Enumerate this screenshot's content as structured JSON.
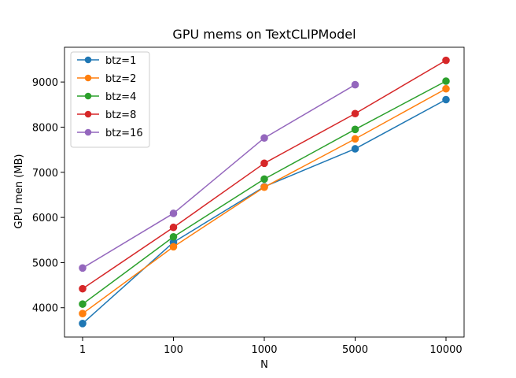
{
  "chart_data": {
    "type": "line",
    "title": "GPU mems on TextCLIPModel",
    "xlabel": "N",
    "ylabel": "GPU men (MB)",
    "categories": [
      "1",
      "100",
      "1000",
      "5000",
      "10000"
    ],
    "ylim": [
      3350,
      9770
    ],
    "yticks": [
      4000,
      5000,
      6000,
      7000,
      8000,
      9000
    ],
    "grid": false,
    "legend_position": "upper-left",
    "marker": "circle",
    "series": [
      {
        "name": "btz=1",
        "color": "#1f77b4",
        "values": [
          3650,
          5450,
          6680,
          7520,
          8610
        ]
      },
      {
        "name": "btz=2",
        "color": "#ff7f0e",
        "values": [
          3870,
          5350,
          6670,
          7740,
          8850
        ]
      },
      {
        "name": "btz=4",
        "color": "#2ca02c",
        "values": [
          4080,
          5570,
          6850,
          7950,
          9020
        ]
      },
      {
        "name": "btz=8",
        "color": "#d62728",
        "values": [
          4420,
          5780,
          7200,
          8300,
          9480
        ]
      },
      {
        "name": "btz=16",
        "color": "#9467bd",
        "values": [
          4880,
          6090,
          7760,
          8940,
          null
        ]
      }
    ]
  }
}
